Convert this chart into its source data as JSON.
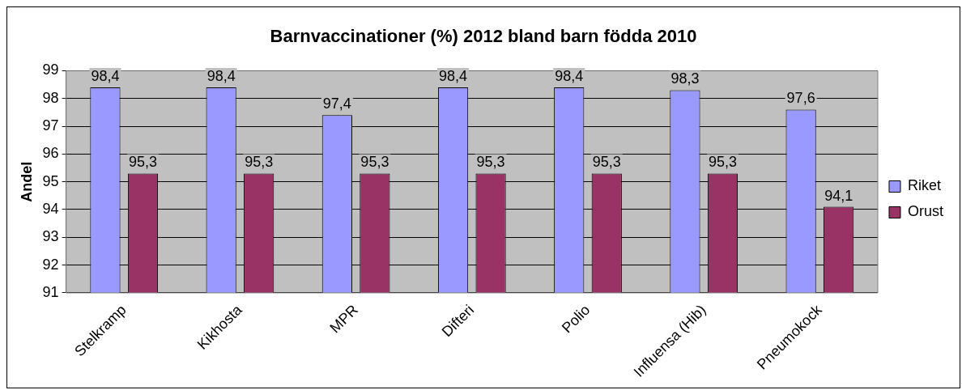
{
  "chart_data": {
    "type": "bar",
    "title": "Barnvaccinationer (%) 2012 bland barn födda 2010",
    "ylabel": "Andel",
    "categories": [
      "Stelkramp",
      "Kikhosta",
      "MPR",
      "Difteri",
      "Polio",
      "Influensa (Hib)",
      "Pneumokock"
    ],
    "series": [
      {
        "name": "Riket",
        "color": "#9999ff",
        "values": [
          98.4,
          98.4,
          97.4,
          98.4,
          98.4,
          98.3,
          97.6
        ],
        "value_labels": [
          "98,4",
          "98,4",
          "97,4",
          "98,4",
          "98,4",
          "98,3",
          "97,6"
        ]
      },
      {
        "name": "Orust",
        "color": "#993366",
        "values": [
          95.3,
          95.3,
          95.3,
          95.3,
          95.3,
          95.3,
          94.1
        ],
        "value_labels": [
          "95,3",
          "95,3",
          "95,3",
          "95,3",
          "95,3",
          "95,3",
          "94,1"
        ]
      }
    ],
    "ylim": [
      91,
      99
    ],
    "yticks": [
      91,
      92,
      93,
      94,
      95,
      96,
      97,
      98,
      99
    ],
    "grid": "y",
    "legend": "right"
  }
}
